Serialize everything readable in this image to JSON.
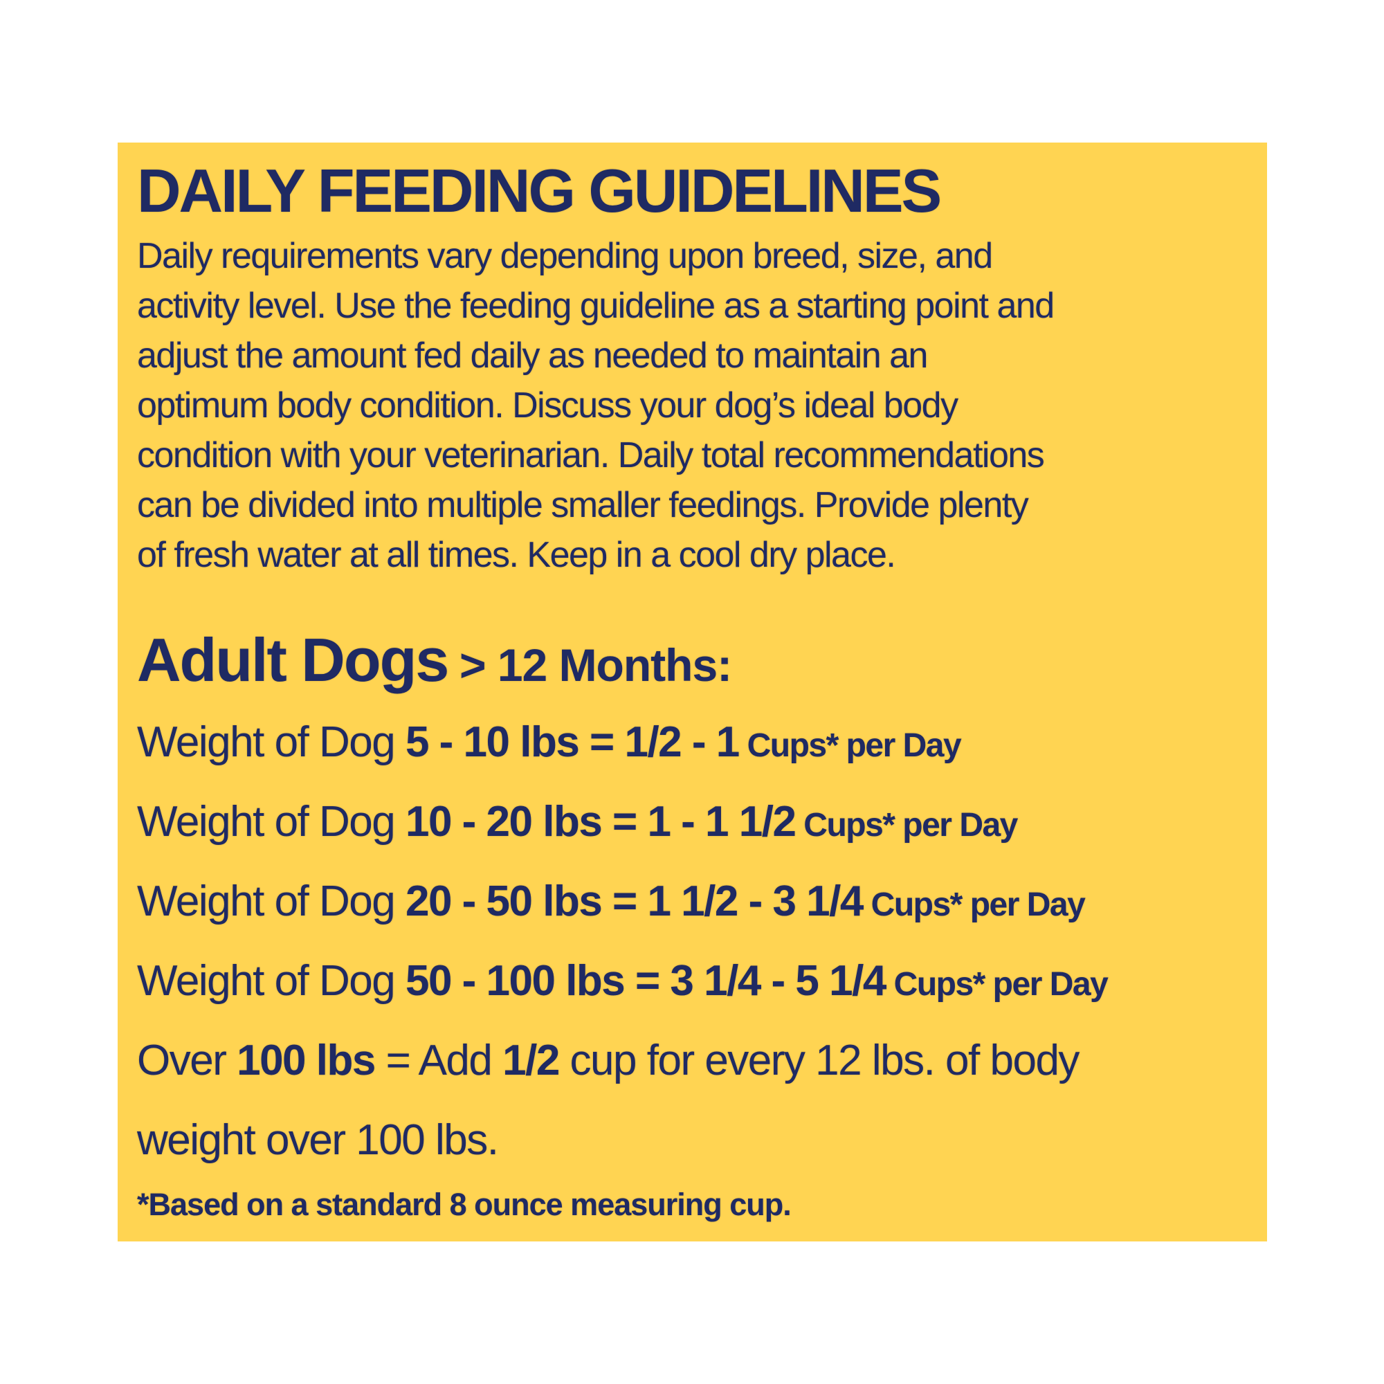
{
  "page": {
    "background_color": "#ffffff"
  },
  "panel": {
    "background_color": "#ffd452",
    "text_color": "#1f2a63",
    "title": "DAILY FEEDING GUIDELINES",
    "intro_lines": [
      "Daily requirements vary depending upon breed, size, and",
      "activity level. Use the feeding guideline as a starting point and",
      "adjust the amount fed daily as needed to maintain an",
      "optimum body condition. Discuss your dog’s ideal body",
      "condition with your veterinarian. Daily total recommendations",
      "can be divided into multiple smaller feedings. Provide plenty",
      "of fresh water at all times. Keep in a cool dry place."
    ],
    "section_heading": {
      "main": "Adult Dogs",
      "qualifier": "> 12 Months:"
    },
    "feeding_lines": [
      {
        "segments": [
          {
            "text": "Weight of Dog ",
            "style": "regular"
          },
          {
            "text": "5 - 10 lbs = 1/2 - 1",
            "style": "bold"
          },
          {
            "text": " Cups* per Day",
            "style": "small"
          }
        ]
      },
      {
        "segments": [
          {
            "text": "Weight of Dog ",
            "style": "regular"
          },
          {
            "text": "10 - 20 lbs = 1 - 1 1/2",
            "style": "bold"
          },
          {
            "text": " Cups* per Day",
            "style": "small"
          }
        ]
      },
      {
        "segments": [
          {
            "text": "Weight of Dog ",
            "style": "regular"
          },
          {
            "text": "20 - 50 lbs = 1 1/2 - 3 1/4",
            "style": "bold"
          },
          {
            "text": " Cups* per Day",
            "style": "small"
          }
        ]
      },
      {
        "segments": [
          {
            "text": "Weight of Dog ",
            "style": "regular"
          },
          {
            "text": "50 - 100 lbs = 3 1/4 - 5 1/4",
            "style": "bold"
          },
          {
            "text": " Cups* per Day",
            "style": "small"
          }
        ]
      },
      {
        "segments": [
          {
            "text": "Over ",
            "style": "regular"
          },
          {
            "text": "100 lbs",
            "style": "bold"
          },
          {
            "text": " = Add ",
            "style": "regular"
          },
          {
            "text": "1/2",
            "style": "bold"
          },
          {
            "text": " cup for every 12 lbs. of body",
            "style": "regular"
          }
        ]
      },
      {
        "segments": [
          {
            "text": "weight over 100 lbs.",
            "style": "regular"
          }
        ]
      }
    ],
    "footnote": "*Based on a standard 8 ounce measuring cup."
  }
}
